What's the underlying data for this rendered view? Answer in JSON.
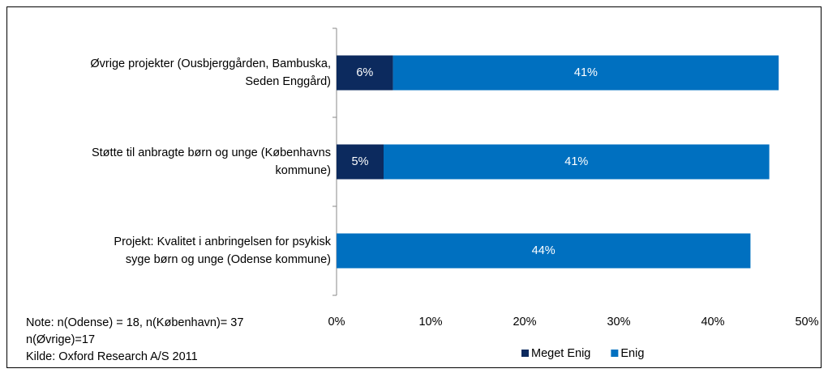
{
  "chart_data": {
    "type": "bar",
    "orientation": "horizontal",
    "stacked": true,
    "categories": [
      "Øvrige projekter (Ousbjerggården, Bambuska,\nSeden Enggård)",
      "Støtte til anbragte børn og unge (Københavns\nkommune)",
      "Projekt: Kvalitet i anbringelsen for psykisk\nsyge børn og unge (Odense kommune)"
    ],
    "series": [
      {
        "name": "Meget Enig",
        "color": "#0c2a5e",
        "values": [
          6,
          5,
          null
        ],
        "value_labels": [
          "6%",
          "5%",
          null
        ]
      },
      {
        "name": "Enig",
        "color": "#0070c0",
        "values": [
          41,
          41,
          44
        ],
        "value_labels": [
          "41%",
          "41%",
          "44%"
        ]
      }
    ],
    "xlim": [
      0,
      50
    ],
    "xticks": [
      {
        "value": 0,
        "label": "0%"
      },
      {
        "value": 10,
        "label": "10%"
      },
      {
        "value": 20,
        "label": "20%"
      },
      {
        "value": 30,
        "label": "30%"
      },
      {
        "value": 40,
        "label": "40%"
      },
      {
        "value": 50,
        "label": "50%"
      }
    ],
    "grid": false,
    "legend": "bottom",
    "note": [
      "Note: n(Odense) = 18, n(København)= 37",
      "n(Øvrige)=17"
    ],
    "source": "Kilde: Oxford Research A/S 2011"
  }
}
